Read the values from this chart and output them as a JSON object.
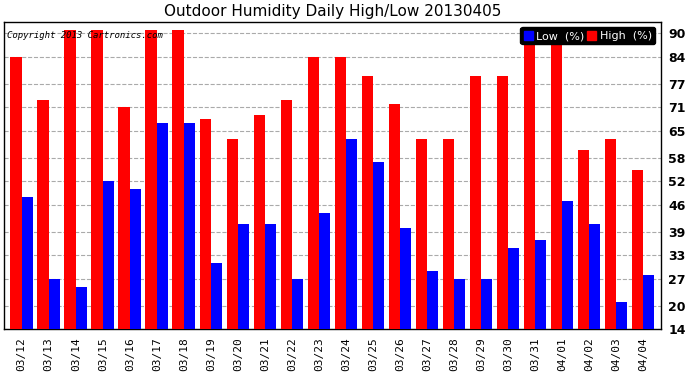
{
  "title": "Outdoor Humidity Daily High/Low 20130405",
  "copyright": "Copyright 2013 Cartronics.com",
  "dates": [
    "03/12",
    "03/13",
    "03/14",
    "03/15",
    "03/16",
    "03/17",
    "03/18",
    "03/19",
    "03/20",
    "03/21",
    "03/22",
    "03/23",
    "03/24",
    "03/25",
    "03/26",
    "03/27",
    "03/28",
    "03/29",
    "03/30",
    "03/31",
    "04/01",
    "04/02",
    "04/03",
    "04/04"
  ],
  "high": [
    84,
    73,
    91,
    91,
    71,
    91,
    91,
    68,
    63,
    69,
    73,
    84,
    84,
    79,
    72,
    63,
    63,
    79,
    79,
    91,
    91,
    60,
    63,
    55
  ],
  "low": [
    48,
    27,
    25,
    52,
    50,
    67,
    67,
    31,
    41,
    41,
    27,
    44,
    63,
    57,
    40,
    29,
    27,
    27,
    35,
    37,
    47,
    41,
    21,
    28
  ],
  "high_color": "#ff0000",
  "low_color": "#0000ff",
  "bg_color": "#ffffff",
  "plot_bg_color": "#ffffff",
  "grid_color": "#aaaaaa",
  "yticks": [
    14,
    20,
    27,
    33,
    39,
    46,
    52,
    58,
    65,
    71,
    77,
    84,
    90
  ],
  "ymin": 14,
  "ymax": 93,
  "title_fontsize": 11,
  "axis_fontsize": 8,
  "legend_fontsize": 8,
  "figwidth": 6.9,
  "figheight": 3.75,
  "dpi": 100
}
